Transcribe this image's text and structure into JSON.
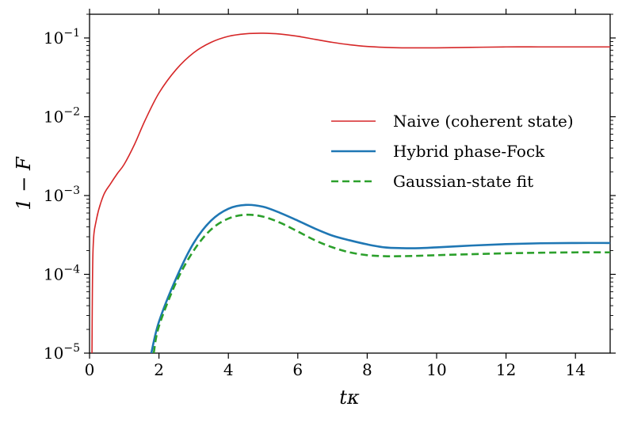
{
  "chart_data": {
    "type": "line",
    "title": "",
    "xlabel": "tκ",
    "ylabel": "1 − F",
    "xlim": [
      0,
      15
    ],
    "ylim": [
      1e-05,
      0.2
    ],
    "yscale": "log",
    "grid": false,
    "legend_position": "center-right",
    "x_ticks": [
      0,
      2,
      4,
      6,
      8,
      10,
      12,
      14
    ],
    "x_tick_labels": [
      "0",
      "2",
      "4",
      "6",
      "8",
      "10",
      "12",
      "14"
    ],
    "y_ticks": [
      1e-05,
      0.0001,
      0.001,
      0.01,
      0.1
    ],
    "y_tick_base": "10",
    "y_tick_exponents": [
      "−5",
      "−4",
      "−3",
      "−2",
      "−1"
    ],
    "series": [
      {
        "name": "Naive (coherent state)",
        "color": "#d62728",
        "style": "solid",
        "x": [
          0.07,
          0.1,
          0.2,
          0.4,
          0.6,
          0.8,
          1.0,
          1.3,
          1.6,
          2.0,
          2.5,
          3.0,
          3.5,
          4.0,
          4.5,
          5.0,
          5.5,
          6.0,
          6.5,
          7.0,
          7.5,
          8.0,
          8.5,
          9.0,
          9.5,
          10.0,
          11.0,
          12.0,
          13.0,
          14.0,
          15.0
        ],
        "y": [
          1e-05,
          0.0002,
          0.0005,
          0.001,
          0.0014,
          0.0019,
          0.0025,
          0.0045,
          0.009,
          0.02,
          0.04,
          0.065,
          0.088,
          0.105,
          0.113,
          0.115,
          0.112,
          0.105,
          0.096,
          0.088,
          0.082,
          0.078,
          0.076,
          0.075,
          0.075,
          0.075,
          0.076,
          0.077,
          0.077,
          0.077,
          0.077
        ]
      },
      {
        "name": "Hybrid phase-Fock",
        "color": "#1f77b4",
        "style": "solid",
        "x": [
          1.78,
          2.0,
          2.5,
          3.0,
          3.5,
          4.0,
          4.5,
          5.0,
          5.5,
          6.0,
          6.5,
          7.0,
          7.5,
          8.0,
          8.5,
          9.0,
          9.5,
          10.0,
          11.0,
          12.0,
          13.0,
          14.0,
          15.0
        ],
        "y": [
          1e-05,
          2.5e-05,
          9e-05,
          0.00025,
          0.00048,
          0.00068,
          0.00076,
          0.00072,
          0.0006,
          0.00048,
          0.00038,
          0.00031,
          0.00027,
          0.00024,
          0.00022,
          0.000215,
          0.000215,
          0.00022,
          0.000232,
          0.000242,
          0.000248,
          0.00025,
          0.00025
        ]
      },
      {
        "name": "Gaussian-state fit",
        "color": "#2ca02c",
        "style": "dashed",
        "x": [
          1.85,
          2.0,
          2.5,
          3.0,
          3.5,
          4.0,
          4.5,
          5.0,
          5.5,
          6.0,
          6.5,
          7.0,
          7.5,
          8.0,
          8.5,
          9.0,
          9.5,
          10.0,
          11.0,
          12.0,
          13.0,
          14.0,
          15.0
        ],
        "y": [
          1e-05,
          2.2e-05,
          8e-05,
          0.0002,
          0.00037,
          0.00051,
          0.00057,
          0.00054,
          0.00045,
          0.00035,
          0.00027,
          0.00022,
          0.00019,
          0.000175,
          0.00017,
          0.00017,
          0.000172,
          0.000175,
          0.00018,
          0.000185,
          0.000188,
          0.00019,
          0.00019
        ]
      }
    ]
  }
}
